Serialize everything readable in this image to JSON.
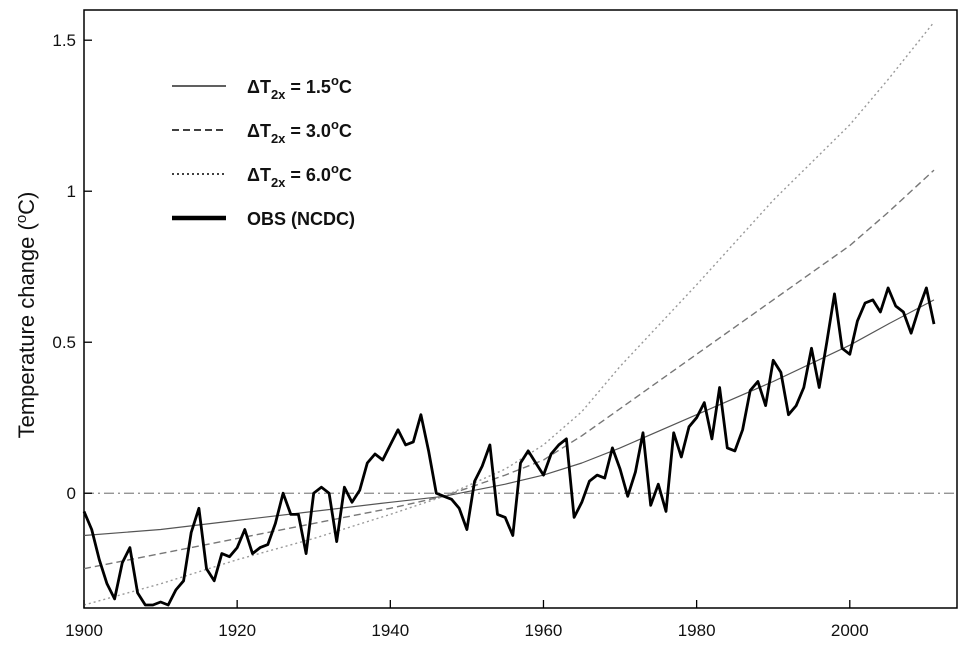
{
  "chart_data": {
    "type": "line",
    "title": "",
    "xlabel": "",
    "ylabel": "Temperature change (°C)",
    "ylabel_parts": {
      "before": "Temperature change (",
      "sup": "o",
      "after": "C)"
    },
    "xlim": [
      1900,
      2014
    ],
    "ylim": [
      -0.38,
      1.6
    ],
    "x_ticks": [
      1900,
      1920,
      1940,
      1960,
      1980,
      2000
    ],
    "y_ticks": [
      0,
      0.5,
      1,
      1.5
    ],
    "y_tick_labels": [
      "0",
      "0.5",
      "1",
      "1.5"
    ],
    "zero_line": {
      "y": 0,
      "style": "dash-dot",
      "color": "#888888"
    },
    "grid": false,
    "legend_position": "top-left",
    "legend": [
      {
        "key": "s15",
        "prefix": "ΔT",
        "sub": "2x",
        "mid": " = 1.5",
        "sup": "o",
        "suffix": "C",
        "style": "solid-thin"
      },
      {
        "key": "s30",
        "prefix": "ΔT",
        "sub": "2x",
        "mid": " = 3.0",
        "sup": "o",
        "suffix": "C",
        "style": "dashed"
      },
      {
        "key": "s60",
        "prefix": "ΔT",
        "sub": "2x",
        "mid": " = 6.0",
        "sup": "o",
        "suffix": "C",
        "style": "dotted"
      },
      {
        "key": "obs",
        "text": "OBS (NCDC)",
        "style": "solid-thick"
      }
    ],
    "series": [
      {
        "key": "s15",
        "x": [
          1900,
          1910,
          1920,
          1930,
          1940,
          1947,
          1955,
          1960,
          1965,
          1970,
          1980,
          1990,
          2000,
          2005,
          2011
        ],
        "values": [
          -0.14,
          -0.12,
          -0.09,
          -0.06,
          -0.03,
          -0.01,
          0.03,
          0.06,
          0.1,
          0.15,
          0.26,
          0.37,
          0.49,
          0.56,
          0.64
        ],
        "color": "#555555"
      },
      {
        "key": "s30",
        "x": [
          1900,
          1910,
          1920,
          1930,
          1940,
          1947,
          1955,
          1960,
          1965,
          1970,
          1980,
          1990,
          2000,
          2005,
          2011
        ],
        "values": [
          -0.25,
          -0.2,
          -0.15,
          -0.1,
          -0.05,
          -0.01,
          0.06,
          0.11,
          0.19,
          0.28,
          0.46,
          0.64,
          0.82,
          0.93,
          1.07
        ],
        "color": "#777777"
      },
      {
        "key": "s60",
        "x": [
          1900,
          1910,
          1920,
          1930,
          1940,
          1947,
          1955,
          1960,
          1965,
          1970,
          1980,
          1990,
          2000,
          2005,
          2011
        ],
        "values": [
          -0.37,
          -0.3,
          -0.22,
          -0.15,
          -0.07,
          -0.01,
          0.08,
          0.16,
          0.27,
          0.42,
          0.69,
          0.97,
          1.22,
          1.37,
          1.56
        ],
        "color": "#999999"
      },
      {
        "key": "obs",
        "x": [
          1900,
          1901,
          1902,
          1903,
          1904,
          1905,
          1906,
          1907,
          1908,
          1909,
          1910,
          1911,
          1912,
          1913,
          1914,
          1915,
          1916,
          1917,
          1918,
          1919,
          1920,
          1921,
          1922,
          1923,
          1924,
          1925,
          1926,
          1927,
          1928,
          1929,
          1930,
          1931,
          1932,
          1933,
          1934,
          1935,
          1936,
          1937,
          1938,
          1939,
          1940,
          1941,
          1942,
          1943,
          1944,
          1945,
          1946,
          1947,
          1948,
          1949,
          1950,
          1951,
          1952,
          1953,
          1954,
          1955,
          1956,
          1957,
          1958,
          1959,
          1960,
          1961,
          1962,
          1963,
          1964,
          1965,
          1966,
          1967,
          1968,
          1969,
          1970,
          1971,
          1972,
          1973,
          1974,
          1975,
          1976,
          1977,
          1978,
          1979,
          1980,
          1981,
          1982,
          1983,
          1984,
          1985,
          1986,
          1987,
          1988,
          1989,
          1990,
          1991,
          1992,
          1993,
          1994,
          1995,
          1996,
          1997,
          1998,
          1999,
          2000,
          2001,
          2002,
          2003,
          2004,
          2005,
          2006,
          2007,
          2008,
          2009,
          2010,
          2011
        ],
        "values": [
          -0.06,
          -0.12,
          -0.22,
          -0.3,
          -0.35,
          -0.23,
          -0.18,
          -0.33,
          -0.37,
          -0.37,
          -0.36,
          -0.37,
          -0.32,
          -0.29,
          -0.13,
          -0.05,
          -0.25,
          -0.29,
          -0.2,
          -0.21,
          -0.18,
          -0.12,
          -0.2,
          -0.18,
          -0.17,
          -0.1,
          0.0,
          -0.07,
          -0.07,
          -0.2,
          0.0,
          0.02,
          0.0,
          -0.16,
          0.02,
          -0.03,
          0.01,
          0.1,
          0.13,
          0.11,
          0.16,
          0.21,
          0.16,
          0.17,
          0.26,
          0.14,
          0.0,
          -0.01,
          -0.02,
          -0.05,
          -0.12,
          0.04,
          0.09,
          0.16,
          -0.07,
          -0.08,
          -0.14,
          0.1,
          0.14,
          0.1,
          0.06,
          0.13,
          0.16,
          0.18,
          -0.08,
          -0.03,
          0.04,
          0.06,
          0.05,
          0.15,
          0.08,
          -0.01,
          0.07,
          0.2,
          -0.04,
          0.03,
          -0.06,
          0.2,
          0.12,
          0.22,
          0.25,
          0.3,
          0.18,
          0.35,
          0.15,
          0.14,
          0.21,
          0.34,
          0.37,
          0.29,
          0.44,
          0.4,
          0.26,
          0.29,
          0.35,
          0.48,
          0.35,
          0.5,
          0.66,
          0.48,
          0.46,
          0.57,
          0.63,
          0.64,
          0.6,
          0.68,
          0.62,
          0.6,
          0.53,
          0.61,
          0.68,
          0.56
        ],
        "color": "#000000"
      }
    ]
  }
}
